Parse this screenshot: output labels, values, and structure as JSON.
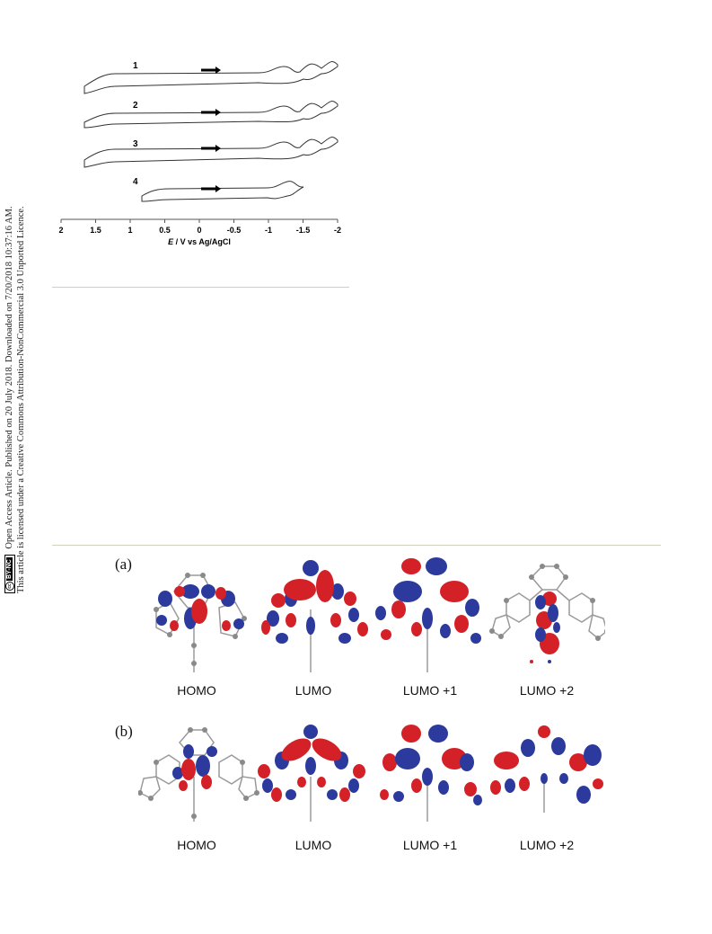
{
  "license": {
    "line1": "Open Access Article. Published on 20 July 2018. Downloaded on 7/20/2018 10:37:16 AM.",
    "line2": "This article is licensed under a Creative Commons Attribution-NonCommercial 3.0 Unported Licence.",
    "badge_cc": "cc",
    "badge_text": "BY-NC"
  },
  "cv_figure": {
    "curve_labels": [
      "1",
      "2",
      "3",
      "4"
    ],
    "xlabel_e": "E",
    "xlabel_rest": " / V vs Ag/AgCl",
    "xticks": [
      "2",
      "1.5",
      "1",
      "0.5",
      "0",
      "-0.5",
      "-1",
      "-1.5",
      "-2"
    ]
  },
  "panel_a": {
    "label": "(a)",
    "orbitals": [
      "HOMO",
      "LUMO",
      "LUMO +1",
      "LUMO +2"
    ]
  },
  "panel_b": {
    "label": "(b)",
    "orbitals": [
      "HOMO",
      "LUMO",
      "LUMO +1",
      "LUMO +2"
    ]
  },
  "colors": {
    "lobe_positive": "#d42027",
    "lobe_negative": "#2b3a9c",
    "atom": "#8a8a8a",
    "rule": "#cfd2b8"
  }
}
